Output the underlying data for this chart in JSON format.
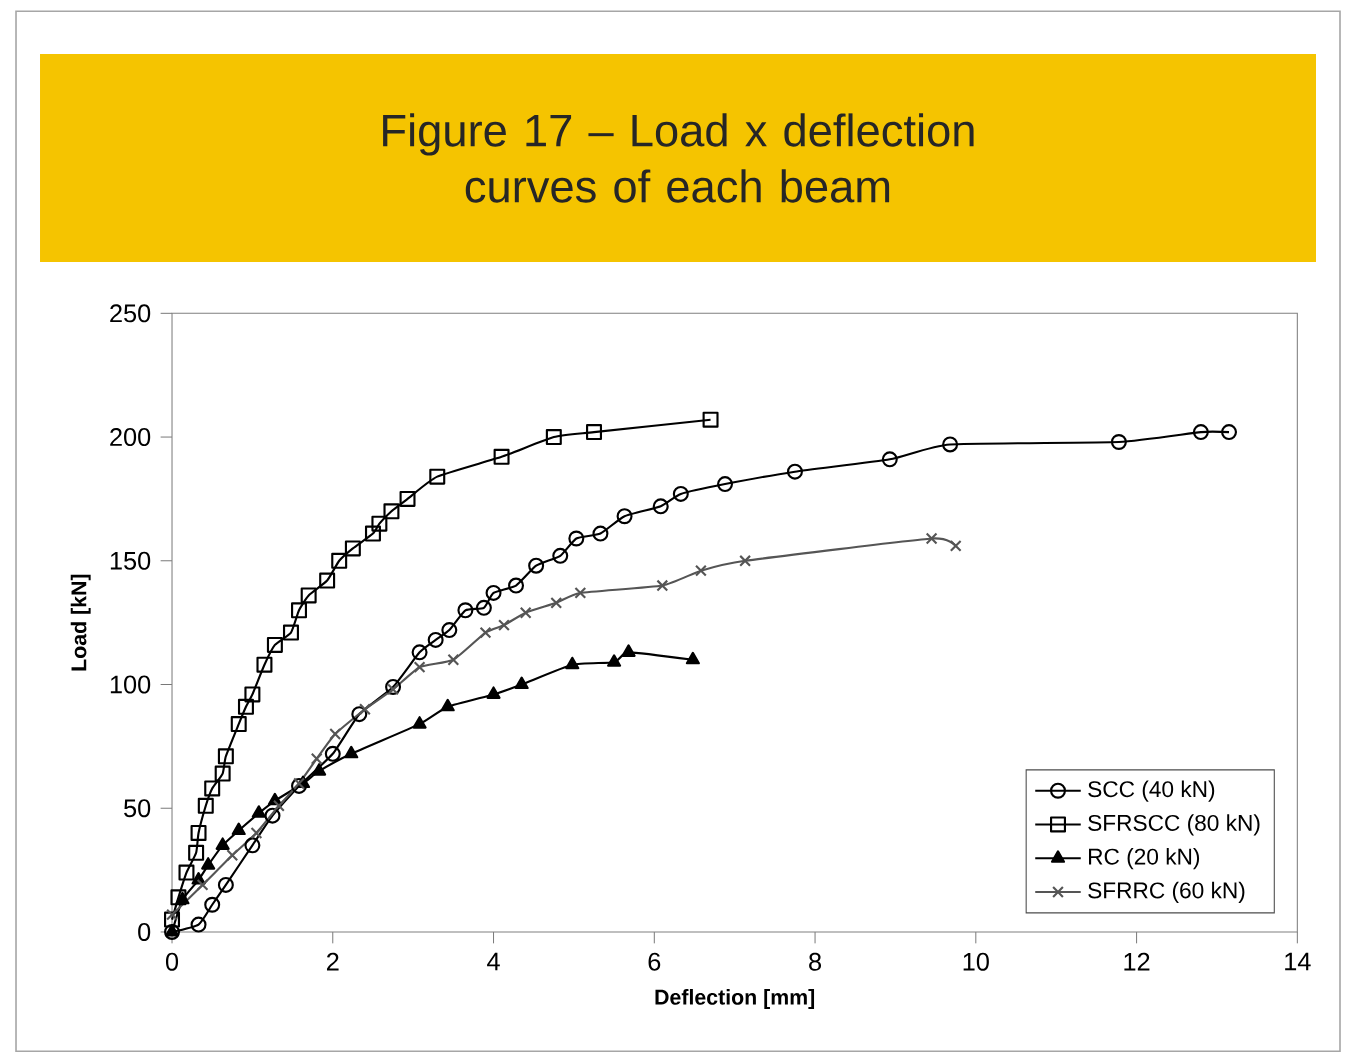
{
  "chart_data": {
    "type": "line",
    "title": "Figure 17 – Load x deflection curves of each beam",
    "xlabel": "Deflection [mm]",
    "ylabel": "Load [kN]",
    "xlim": [
      0,
      14
    ],
    "xticks": [
      0,
      2,
      4,
      6,
      8,
      10,
      12,
      14
    ],
    "ylim": [
      0,
      250
    ],
    "yticks": [
      0,
      50,
      100,
      150,
      200,
      250
    ],
    "grid": false,
    "legend": "bottom right",
    "line_style": "solid",
    "series": [
      {
        "name": "SCC (40 kN)",
        "color": "#000000",
        "marker": "circle",
        "x": [
          0,
          0.33,
          0.5,
          0.67,
          1.0,
          1.25,
          1.58,
          2.0,
          2.33,
          2.75,
          3.08,
          3.28,
          3.45,
          3.65,
          3.88,
          4.0,
          4.28,
          4.53,
          4.83,
          5.03,
          5.33,
          5.63,
          6.08,
          6.33,
          6.88,
          7.75,
          8.93,
          9.68,
          11.78,
          12.8,
          13.15
        ],
        "values": [
          0,
          3,
          11,
          19,
          35,
          47,
          59,
          72,
          88,
          99,
          113,
          118,
          122,
          130,
          131,
          137,
          140,
          148,
          152,
          159,
          161,
          168,
          172,
          177,
          181,
          186,
          191,
          197,
          198,
          202,
          202
        ]
      },
      {
        "name": "SFRSCC (80 kN)",
        "color": "#000000",
        "marker": "square",
        "x": [
          0,
          0.08,
          0.18,
          0.3,
          0.33,
          0.42,
          0.5,
          0.63,
          0.67,
          0.83,
          0.92,
          1.0,
          1.15,
          1.28,
          1.48,
          1.58,
          1.7,
          1.93,
          2.08,
          2.25,
          2.5,
          2.58,
          2.73,
          2.93,
          3.3,
          4.1,
          4.75,
          5.25,
          6.7
        ],
        "values": [
          5,
          14,
          24,
          32,
          40,
          51,
          58,
          64,
          71,
          84,
          91,
          96,
          108,
          116,
          121,
          130,
          136,
          142,
          150,
          155,
          161,
          165,
          170,
          175,
          184,
          192,
          200,
          202,
          207
        ]
      },
      {
        "name": "RC (20 kN)",
        "color": "#000000",
        "marker": "triangle",
        "x": [
          0,
          0.13,
          0.33,
          0.45,
          0.63,
          0.83,
          1.08,
          1.28,
          1.63,
          1.83,
          2.23,
          3.08,
          3.43,
          4.0,
          4.35,
          4.98,
          5.5,
          5.68,
          6.48
        ],
        "values": [
          0,
          13,
          21,
          27,
          35,
          41,
          48,
          53,
          60,
          65,
          72,
          84,
          91,
          96,
          100,
          108,
          109,
          113,
          110
        ]
      },
      {
        "name": "SFRRC (60 kN)",
        "color": "#555555",
        "marker": "cross",
        "x": [
          0,
          0.38,
          0.75,
          1.05,
          1.33,
          1.58,
          1.8,
          2.03,
          2.4,
          2.75,
          3.08,
          3.5,
          3.9,
          4.13,
          4.4,
          4.78,
          5.08,
          6.1,
          6.58,
          7.13,
          9.45,
          9.75
        ],
        "values": [
          7,
          19,
          31,
          40,
          51,
          60,
          70,
          80,
          90,
          98,
          107,
          110,
          121,
          124,
          129,
          133,
          137,
          140,
          146,
          150,
          159,
          156
        ]
      }
    ]
  }
}
